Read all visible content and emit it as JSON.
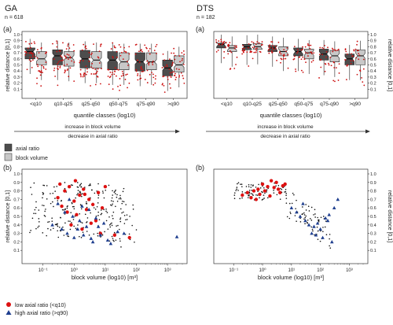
{
  "panels": {
    "left": {
      "title": "GA",
      "n": "n = 618"
    },
    "right": {
      "title": "DTS",
      "n": "n = 182"
    }
  },
  "labels": {
    "a": "(a)",
    "b": "(b)",
    "rel_dist": "relative distance [0,1]",
    "quantile_x": "quantile classes (log10)",
    "block_x": "block volume (log10) [m³]",
    "arrow_top": "increase in block volume",
    "arrow_bottom": "decrease in axial ratio"
  },
  "legend_box": {
    "axial": "axial ratio",
    "volume": "block volume"
  },
  "legend_scatter": {
    "low": "low axial ratio (<q10)",
    "high": "high axial ratio (>q90)"
  },
  "colors": {
    "axial": "#4d4d4d",
    "volume": "#c8c8c8",
    "jitter": "#cc1111",
    "low": "#dd1111",
    "high": "#1f3f8f",
    "other": "#111111"
  },
  "chart_data": [
    {
      "type": "box",
      "panel": "GA (a)",
      "categories": [
        "<q10",
        "q10-q25",
        "q25-q50",
        "q50-q75",
        "q75-q90",
        ">q90"
      ],
      "ylabel": "relative distance [0,1]",
      "xlabel": "quantile classes (log10)",
      "ylim": [
        0,
        1
      ],
      "yticks": [
        0.1,
        0.2,
        0.3,
        0.4,
        0.5,
        0.6,
        0.7,
        0.8,
        0.9,
        1.0
      ],
      "series": [
        {
          "name": "axial ratio",
          "medians": [
            0.72,
            0.65,
            0.6,
            0.58,
            0.55,
            0.45
          ],
          "q1": [
            0.6,
            0.5,
            0.45,
            0.42,
            0.4,
            0.32
          ],
          "q3": [
            0.78,
            0.75,
            0.74,
            0.72,
            0.7,
            0.58
          ]
        },
        {
          "name": "block volume",
          "medians": [
            0.6,
            0.62,
            0.58,
            0.55,
            0.55,
            0.5
          ],
          "q1": [
            0.5,
            0.48,
            0.45,
            0.42,
            0.42,
            0.38
          ],
          "q3": [
            0.72,
            0.72,
            0.72,
            0.7,
            0.7,
            0.65
          ]
        }
      ]
    },
    {
      "type": "box",
      "panel": "DTS (a)",
      "categories": [
        "<q10",
        "q10-q25",
        "q25-q50",
        "q50-q75",
        "q75-q90",
        ">q90"
      ],
      "ylabel": "relative distance [0,1]",
      "xlabel": "quantile classes (log10)",
      "ylim": [
        0,
        1
      ],
      "yticks": [
        0.1,
        0.2,
        0.3,
        0.4,
        0.5,
        0.6,
        0.7,
        0.8,
        0.9,
        1.0
      ],
      "series": [
        {
          "name": "axial ratio",
          "medians": [
            0.84,
            0.8,
            0.78,
            0.72,
            0.68,
            0.6
          ],
          "q1": [
            0.78,
            0.75,
            0.72,
            0.65,
            0.58,
            0.5
          ],
          "q3": [
            0.86,
            0.84,
            0.82,
            0.78,
            0.76,
            0.68
          ]
        },
        {
          "name": "block volume",
          "medians": [
            0.78,
            0.8,
            0.72,
            0.7,
            0.65,
            0.65
          ],
          "q1": [
            0.72,
            0.76,
            0.65,
            0.6,
            0.55,
            0.5
          ],
          "q3": [
            0.82,
            0.85,
            0.8,
            0.76,
            0.74,
            0.75
          ]
        }
      ]
    },
    {
      "type": "scatter",
      "panel": "GA (b)",
      "xlabel": "block volume (log10) [m³]",
      "ylabel": "relative distance [0,1]",
      "xscale": "log",
      "xlim": [
        0.03,
        3000
      ],
      "ylim": [
        0,
        1
      ],
      "xticks": [
        "10⁻¹",
        "10⁰",
        "10¹",
        "10²",
        "10³"
      ],
      "yticks": [
        0.1,
        0.2,
        0.3,
        0.4,
        0.5,
        0.6,
        0.7,
        0.8,
        0.9,
        1.0
      ],
      "series": [
        {
          "name": "low axial ratio (<q10)",
          "x": [
            0.3,
            0.5,
            0.7,
            1.0,
            1.5,
            2.0,
            3.0,
            4.0,
            6.0,
            8.0,
            10,
            0.4,
            0.6,
            1.2,
            2.5,
            5.0,
            0.8,
            1.8,
            3.5,
            7.0,
            20,
            60,
            0.35,
            1.1,
            2.2
          ],
          "y": [
            0.72,
            0.8,
            0.85,
            0.68,
            0.75,
            0.82,
            0.7,
            0.64,
            0.78,
            0.6,
            0.85,
            0.62,
            0.55,
            0.52,
            0.58,
            0.45,
            0.4,
            0.35,
            0.42,
            0.3,
            0.28,
            0.25,
            0.88,
            0.92,
            0.76
          ]
        },
        {
          "name": "high axial ratio (>q90)",
          "x": [
            0.2,
            0.4,
            0.6,
            1.0,
            1.5,
            2.5,
            4.0,
            7.0,
            12,
            25,
            0.5,
            0.9,
            1.8,
            3.0,
            5.0,
            9.0,
            15,
            40,
            0.3,
            0.7,
            1.3,
            2.0,
            3.5,
            6.0,
            2000
          ],
          "y": [
            0.4,
            0.35,
            0.3,
            0.25,
            0.45,
            0.38,
            0.2,
            0.28,
            0.22,
            0.32,
            0.55,
            0.5,
            0.62,
            0.58,
            0.48,
            0.42,
            0.18,
            0.3,
            0.65,
            0.7,
            0.35,
            0.28,
            0.24,
            0.38,
            0.26
          ]
        }
      ]
    },
    {
      "type": "scatter",
      "panel": "DTS (b)",
      "xlabel": "block volume (log10) [m³]",
      "ylabel": "relative distance [0,1]",
      "xscale": "log",
      "xlim": [
        0.03,
        3000
      ],
      "ylim": [
        0,
        1
      ],
      "xticks": [
        "10⁻¹",
        "10⁰",
        "10¹",
        "10²",
        "10³"
      ],
      "yticks": [
        0.1,
        0.2,
        0.3,
        0.4,
        0.5,
        0.6,
        0.7,
        0.8,
        0.9,
        1.0
      ],
      "series": [
        {
          "name": "low axial ratio (<q10)",
          "x": [
            0.2,
            0.3,
            0.5,
            0.7,
            1.0,
            1.5,
            2.0,
            3.0,
            5.0,
            0.4,
            0.8,
            1.2,
            2.5,
            4.0,
            0.6,
            1.8,
            3.5,
            6.0
          ],
          "y": [
            0.75,
            0.78,
            0.8,
            0.82,
            0.88,
            0.85,
            0.92,
            0.9,
            0.86,
            0.72,
            0.76,
            0.8,
            0.84,
            0.78,
            0.7,
            0.74,
            0.82,
            0.88
          ]
        },
        {
          "name": "high axial ratio (>q90)",
          "x": [
            10,
            15,
            20,
            30,
            40,
            60,
            80,
            100,
            150,
            200,
            300,
            50,
            120,
            250,
            25,
            70,
            180,
            400
          ],
          "y": [
            0.6,
            0.55,
            0.5,
            0.45,
            0.4,
            0.38,
            0.42,
            0.35,
            0.48,
            0.52,
            0.6,
            0.3,
            0.25,
            0.2,
            0.65,
            0.28,
            0.45,
            0.7
          ]
        }
      ]
    }
  ]
}
